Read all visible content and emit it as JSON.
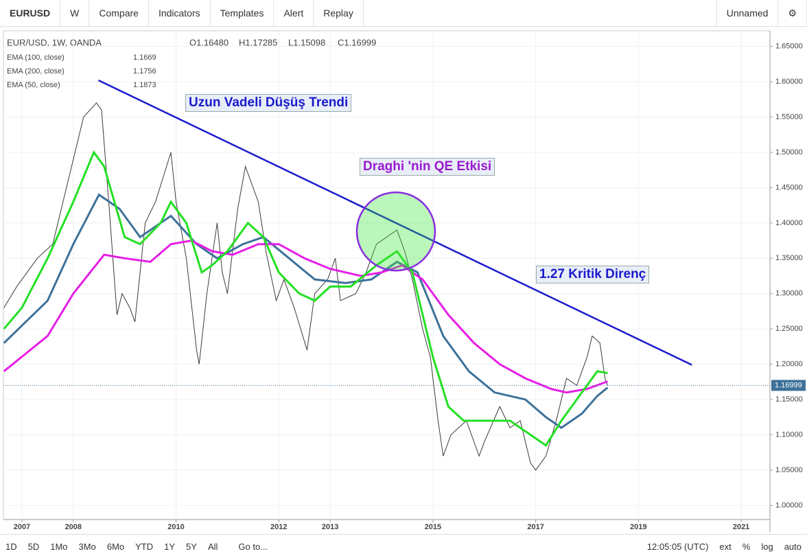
{
  "toolbar": {
    "symbol": "EURUSD",
    "interval": "W",
    "items": [
      "Compare",
      "Indicators",
      "Templates",
      "Alert",
      "Replay"
    ],
    "layout": "Unnamed"
  },
  "bottom_bar": {
    "ranges": [
      "1D",
      "5D",
      "1Mo",
      "3Mo",
      "6Mo",
      "YTD",
      "1Y",
      "5Y",
      "All"
    ],
    "goto": "Go to...",
    "clock": "12:05:05 (UTC)",
    "options": [
      "ext",
      "%",
      "log",
      "auto"
    ]
  },
  "chart_data": {
    "type": "line",
    "title": "EUR/USD, 1W, OANDA",
    "ohlc": [
      "O1.16480",
      "H1.17285",
      "L1.15098",
      "C1.16999"
    ],
    "xlim": [
      2006.64,
      2021.56
    ],
    "ylim": [
      0.98,
      1.672
    ],
    "xticks": [
      2007,
      2008,
      2010,
      2012,
      2013,
      2015,
      2017,
      2019,
      2021
    ],
    "yticks": [
      {
        "value": 1.0,
        "label": "1.00000"
      },
      {
        "value": 1.05,
        "label": "1.05000"
      },
      {
        "value": 1.1,
        "label": "1.10000"
      },
      {
        "value": 1.15,
        "label": "1.15000"
      },
      {
        "value": 1.2,
        "label": "1.20000"
      },
      {
        "value": 1.25,
        "label": "1.25000"
      },
      {
        "value": 1.3,
        "label": "1.30000"
      },
      {
        "value": 1.35,
        "label": "1.35000"
      },
      {
        "value": 1.4,
        "label": "1.40000"
      },
      {
        "value": 1.45,
        "label": "1.45000"
      },
      {
        "value": 1.5,
        "label": "1.50000"
      },
      {
        "value": 1.55,
        "label": "1.55000"
      },
      {
        "value": 1.6,
        "label": "1.60000"
      },
      {
        "value": 1.65,
        "label": "1.65000"
      }
    ],
    "price": {
      "color": "#3a3a3a",
      "x": [
        2006.65,
        2006.9,
        2007.0,
        2007.3,
        2007.6,
        2007.9,
        2008.2,
        2008.45,
        2008.55,
        2008.7,
        2008.85,
        2008.95,
        2009.1,
        2009.2,
        2009.4,
        2009.6,
        2009.9,
        2010.0,
        2010.2,
        2010.4,
        2010.45,
        2010.6,
        2010.8,
        2010.9,
        2011.0,
        2011.2,
        2011.35,
        2011.6,
        2011.75,
        2011.95,
        2012.1,
        2012.3,
        2012.55,
        2012.7,
        2012.95,
        2013.1,
        2013.2,
        2013.5,
        2013.7,
        2013.9,
        2014.1,
        2014.3,
        2014.45,
        2014.6,
        2014.8,
        2014.95,
        2015.1,
        2015.2,
        2015.35,
        2015.5,
        2015.65,
        2015.9,
        2016.0,
        2016.3,
        2016.5,
        2016.7,
        2016.9,
        2017.0,
        2017.2,
        2017.4,
        2017.6,
        2017.8,
        2018.0,
        2018.1,
        2018.25,
        2018.35,
        2018.4
      ],
      "values": [
        1.28,
        1.31,
        1.32,
        1.35,
        1.37,
        1.46,
        1.55,
        1.57,
        1.56,
        1.42,
        1.27,
        1.3,
        1.28,
        1.26,
        1.4,
        1.43,
        1.5,
        1.43,
        1.35,
        1.22,
        1.2,
        1.3,
        1.4,
        1.33,
        1.3,
        1.42,
        1.48,
        1.43,
        1.36,
        1.29,
        1.32,
        1.28,
        1.22,
        1.3,
        1.32,
        1.35,
        1.29,
        1.3,
        1.33,
        1.37,
        1.38,
        1.39,
        1.36,
        1.32,
        1.25,
        1.21,
        1.12,
        1.07,
        1.1,
        1.11,
        1.12,
        1.07,
        1.09,
        1.14,
        1.11,
        1.12,
        1.06,
        1.05,
        1.07,
        1.12,
        1.18,
        1.17,
        1.21,
        1.24,
        1.23,
        1.18,
        1.16999
      ]
    },
    "series": [
      {
        "name": "EMA (100, close)",
        "color": "#3d7199",
        "x": [
          2006.65,
          2007.5,
          2008.0,
          2008.5,
          2008.9,
          2009.3,
          2009.9,
          2010.4,
          2010.8,
          2011.3,
          2011.7,
          2012.2,
          2012.7,
          2013.3,
          2013.8,
          2014.3,
          2014.7,
          2015.2,
          2015.7,
          2016.2,
          2016.8,
          2017.2,
          2017.5,
          2017.9,
          2018.2,
          2018.4
        ],
        "values": [
          1.23,
          1.29,
          1.37,
          1.44,
          1.42,
          1.38,
          1.41,
          1.37,
          1.35,
          1.37,
          1.38,
          1.35,
          1.32,
          1.315,
          1.32,
          1.345,
          1.33,
          1.24,
          1.19,
          1.16,
          1.15,
          1.125,
          1.11,
          1.13,
          1.155,
          1.1669
        ]
      },
      {
        "name": "EMA (200, close)",
        "color": "#e61ee6",
        "x": [
          2006.65,
          2007.5,
          2008.0,
          2008.6,
          2009.0,
          2009.5,
          2009.9,
          2010.3,
          2010.7,
          2011.1,
          2011.6,
          2012.0,
          2012.5,
          2013.0,
          2013.6,
          2014.0,
          2014.4,
          2014.8,
          2015.3,
          2015.8,
          2016.3,
          2016.8,
          2017.3,
          2017.6,
          2018.0,
          2018.4
        ],
        "values": [
          1.19,
          1.24,
          1.3,
          1.355,
          1.35,
          1.345,
          1.37,
          1.375,
          1.36,
          1.355,
          1.37,
          1.37,
          1.35,
          1.335,
          1.325,
          1.33,
          1.34,
          1.32,
          1.27,
          1.23,
          1.2,
          1.18,
          1.165,
          1.16,
          1.165,
          1.1756
        ]
      },
      {
        "name": "EMA (50, close)",
        "color": "#22e022",
        "x": [
          2006.65,
          2007.0,
          2007.5,
          2008.0,
          2008.4,
          2008.6,
          2009.0,
          2009.3,
          2009.7,
          2009.9,
          2010.2,
          2010.5,
          2010.7,
          2011.0,
          2011.4,
          2011.7,
          2012.0,
          2012.4,
          2012.7,
          2013.0,
          2013.4,
          2013.9,
          2014.3,
          2014.6,
          2015.0,
          2015.3,
          2015.6,
          2016.0,
          2016.5,
          2016.9,
          2017.2,
          2017.5,
          2017.9,
          2018.2,
          2018.4
        ],
        "values": [
          1.25,
          1.28,
          1.35,
          1.43,
          1.5,
          1.48,
          1.38,
          1.37,
          1.4,
          1.43,
          1.4,
          1.33,
          1.34,
          1.36,
          1.4,
          1.38,
          1.33,
          1.3,
          1.29,
          1.31,
          1.31,
          1.34,
          1.36,
          1.33,
          1.21,
          1.14,
          1.12,
          1.12,
          1.12,
          1.1,
          1.085,
          1.12,
          1.16,
          1.19,
          1.1873
        ]
      }
    ],
    "trendline": {
      "x": [
        2008.49,
        2020.04
      ],
      "y": [
        1.602,
        1.199
      ],
      "color": "#1a1acc"
    },
    "circle": {
      "x": 2014.28,
      "y": 1.388
    },
    "annotations": [
      "Uzun Vadeli Düşüş Trendi",
      "Draghi 'nin QE Etkisi",
      "1.27 Kritik Direnç"
    ]
  }
}
